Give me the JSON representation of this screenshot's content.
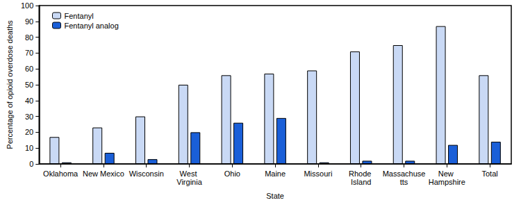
{
  "chart_data": {
    "type": "bar",
    "x_label": "State",
    "y_label": "Percentage of opioid overdose deaths",
    "categories": [
      "Oklahoma",
      "New Mexico",
      "Wisconsin",
      "West Virginia",
      "Ohio",
      "Maine",
      "Missouri",
      "Rhode Island",
      "Massachusetts",
      "New Hampshire",
      "Total"
    ],
    "series": [
      {
        "name": "Fentanyl",
        "color": "#c9d9f5",
        "values": [
          17,
          23,
          30,
          50,
          56,
          57,
          59,
          71,
          75,
          87,
          56
        ]
      },
      {
        "name": "Fentanyl analog",
        "color": "#1a5fd8",
        "values": [
          1,
          7,
          3,
          20,
          26,
          29,
          1,
          2,
          2,
          12,
          14
        ]
      }
    ],
    "ylim": [
      0,
      100
    ],
    "yticks": [
      0,
      10,
      20,
      30,
      40,
      50,
      60,
      70,
      80,
      90,
      100
    ],
    "grid": false,
    "legend": "upper left"
  }
}
